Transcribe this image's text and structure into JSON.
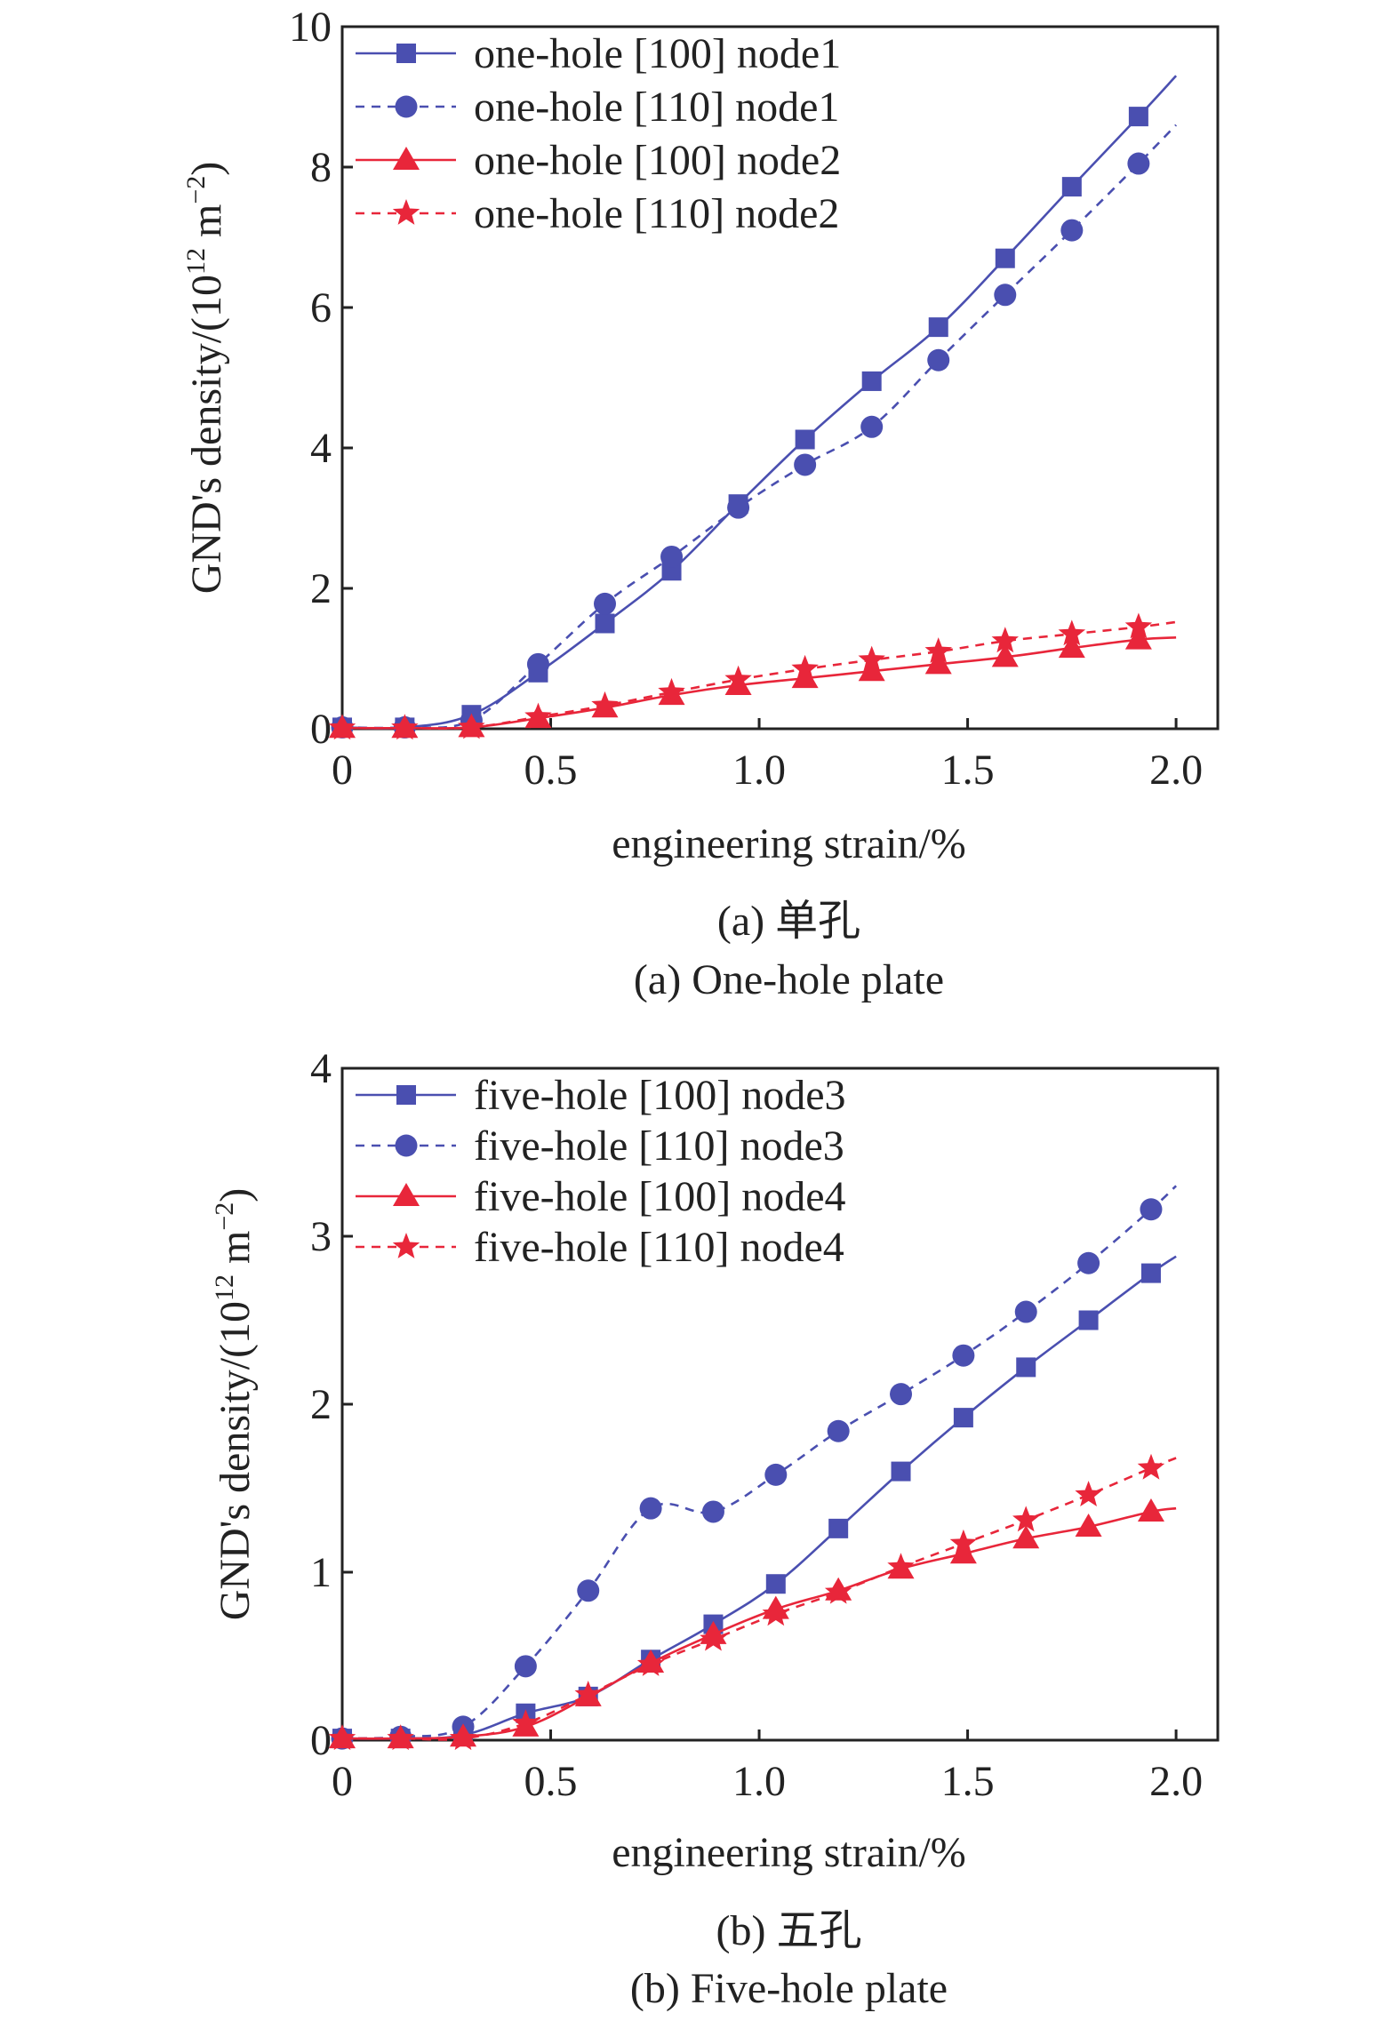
{
  "chart_data": [
    {
      "type": "line",
      "xlabel": "engineering strain/%",
      "ylabel": "GND's density/(10",
      "ylabel_sup1": "12",
      "ylabel_unit": " m",
      "ylabel_sup2": "−2",
      "ylabel_close": ")",
      "xlim": [
        0,
        2.1
      ],
      "ylim": [
        0,
        10
      ],
      "xticks": [
        0,
        0.5,
        1.0,
        1.5,
        2.0
      ],
      "xtick_labels": [
        "0",
        "0.5",
        "1.0",
        "1.5",
        "2.0"
      ],
      "yticks": [
        0,
        2,
        4,
        6,
        8,
        10
      ],
      "ytick_labels": [
        "0",
        "2",
        "4",
        "6",
        "8",
        "10"
      ],
      "legend_position": "top-left",
      "caption_cn": "(a) 单孔",
      "caption_en": "(a) One-hole plate",
      "series": [
        {
          "name": "one-hole [100] node1",
          "color": "#4a4fb0",
          "marker": "square",
          "dash": "solid",
          "x": [
            0,
            0.15,
            0.31,
            0.47,
            0.63,
            0.79,
            0.95,
            1.11,
            1.27,
            1.43,
            1.59,
            1.75,
            1.91
          ],
          "y": [
            0.02,
            0.02,
            0.2,
            0.8,
            1.5,
            2.25,
            3.2,
            4.12,
            4.95,
            5.72,
            6.7,
            7.72,
            8.72
          ],
          "line_end": [
            2.0,
            9.3
          ]
        },
        {
          "name": "one-hole [110] node1",
          "color": "#4a4fb0",
          "marker": "circle",
          "dash": "dashed",
          "x": [
            0,
            0.15,
            0.31,
            0.47,
            0.63,
            0.79,
            0.95,
            1.11,
            1.27,
            1.43,
            1.59,
            1.75,
            1.91
          ],
          "y": [
            0.02,
            0.02,
            0.12,
            0.92,
            1.78,
            2.45,
            3.15,
            3.76,
            4.3,
            5.25,
            6.18,
            7.1,
            8.05
          ],
          "line_end": [
            2.0,
            8.6
          ]
        },
        {
          "name": "one-hole [100] node2",
          "color": "#e8263a",
          "marker": "triangle",
          "dash": "solid",
          "x": [
            0,
            0.15,
            0.31,
            0.47,
            0.63,
            0.79,
            0.95,
            1.11,
            1.27,
            1.43,
            1.59,
            1.75,
            1.91
          ],
          "y": [
            0.01,
            0.01,
            0.02,
            0.15,
            0.3,
            0.48,
            0.62,
            0.72,
            0.82,
            0.92,
            1.02,
            1.15,
            1.27
          ],
          "line_end": [
            2.0,
            1.3
          ]
        },
        {
          "name": "one-hole [110] node2",
          "color": "#e8263a",
          "marker": "star",
          "dash": "dashed",
          "x": [
            0,
            0.15,
            0.31,
            0.47,
            0.63,
            0.79,
            0.95,
            1.11,
            1.27,
            1.43,
            1.59,
            1.75,
            1.91
          ],
          "y": [
            0.01,
            0.01,
            0.02,
            0.17,
            0.33,
            0.52,
            0.7,
            0.85,
            0.98,
            1.1,
            1.25,
            1.35,
            1.45
          ],
          "line_end": [
            2.0,
            1.52
          ]
        }
      ]
    },
    {
      "type": "line",
      "xlabel": "engineering strain/%",
      "ylabel": "GND's density/(10",
      "ylabel_sup1": "12",
      "ylabel_unit": " m",
      "ylabel_sup2": "−2",
      "ylabel_close": ")",
      "xlim": [
        0,
        2.1
      ],
      "ylim": [
        0,
        4
      ],
      "xticks": [
        0,
        0.5,
        1.0,
        1.5,
        2.0
      ],
      "xtick_labels": [
        "0",
        "0.5",
        "1.0",
        "1.5",
        "2.0"
      ],
      "yticks": [
        0,
        1,
        2,
        3,
        4
      ],
      "ytick_labels": [
        "0",
        "1",
        "2",
        "3",
        "4"
      ],
      "legend_position": "top-left",
      "caption_cn": "(b) 五孔",
      "caption_en": "(b) Five-hole plate",
      "series": [
        {
          "name": "five-hole [100] node3",
          "color": "#4a4fb0",
          "marker": "square",
          "dash": "solid",
          "x": [
            0,
            0.14,
            0.29,
            0.44,
            0.59,
            0.74,
            0.89,
            1.04,
            1.19,
            1.34,
            1.49,
            1.64,
            1.79,
            1.94
          ],
          "y": [
            0.01,
            0.01,
            0.03,
            0.16,
            0.26,
            0.48,
            0.69,
            0.93,
            1.26,
            1.6,
            1.92,
            2.22,
            2.5,
            2.78
          ],
          "line_end": [
            2.0,
            2.88
          ]
        },
        {
          "name": "five-hole [110] node3",
          "color": "#4a4fb0",
          "marker": "circle",
          "dash": "dashed",
          "x": [
            0,
            0.14,
            0.29,
            0.44,
            0.59,
            0.74,
            0.89,
            1.04,
            1.19,
            1.34,
            1.49,
            1.64,
            1.79,
            1.94
          ],
          "y": [
            0.01,
            0.02,
            0.08,
            0.44,
            0.89,
            1.38,
            1.36,
            1.58,
            1.84,
            2.06,
            2.29,
            2.55,
            2.84,
            3.16
          ],
          "line_end": [
            2.0,
            3.3
          ]
        },
        {
          "name": "five-hole [100] node4",
          "color": "#e8263a",
          "marker": "triangle",
          "dash": "solid",
          "x": [
            0,
            0.14,
            0.29,
            0.44,
            0.59,
            0.74,
            0.89,
            1.04,
            1.19,
            1.34,
            1.49,
            1.64,
            1.79,
            1.94
          ],
          "y": [
            0.01,
            0.01,
            0.02,
            0.08,
            0.26,
            0.46,
            0.63,
            0.78,
            0.89,
            1.02,
            1.11,
            1.2,
            1.27,
            1.36
          ],
          "line_end": [
            2.0,
            1.38
          ]
        },
        {
          "name": "five-hole [110] node4",
          "color": "#e8263a",
          "marker": "star",
          "dash": "dashed",
          "x": [
            0,
            0.14,
            0.29,
            0.44,
            0.59,
            0.74,
            0.89,
            1.04,
            1.19,
            1.34,
            1.49,
            1.64,
            1.79,
            1.94
          ],
          "y": [
            0.01,
            0.01,
            0.01,
            0.1,
            0.27,
            0.45,
            0.6,
            0.75,
            0.88,
            1.03,
            1.17,
            1.31,
            1.46,
            1.62
          ],
          "line_end": [
            2.0,
            1.68
          ]
        }
      ]
    }
  ]
}
